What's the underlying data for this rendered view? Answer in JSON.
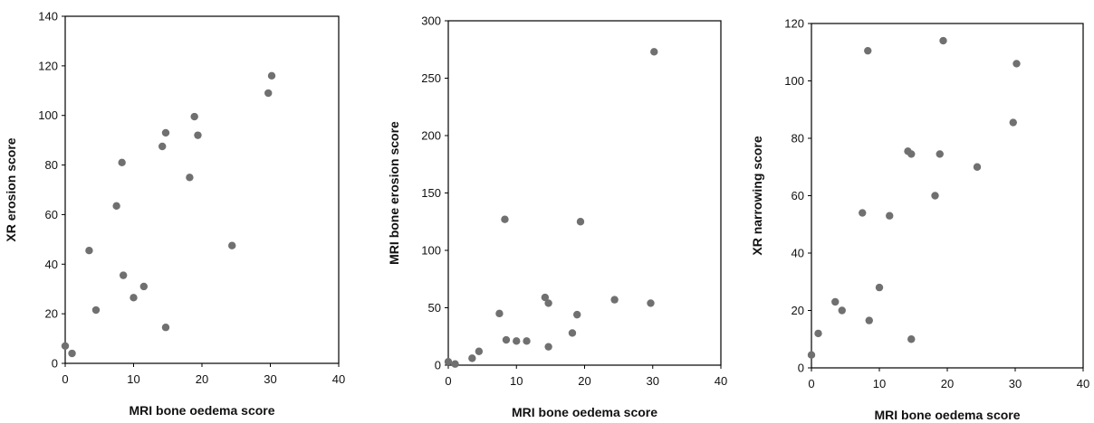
{
  "chart_data": [
    {
      "type": "scatter",
      "xlabel": "MRI bone oedema score",
      "ylabel": "XR erosion score",
      "xlim": [
        0,
        40
      ],
      "ylim": [
        0,
        140
      ],
      "xticks": [
        0,
        10,
        20,
        30,
        40
      ],
      "yticks": [
        0,
        20,
        40,
        60,
        80,
        100,
        120,
        140
      ],
      "grid": false,
      "points": [
        {
          "x": 0,
          "y": 7
        },
        {
          "x": 1,
          "y": 4
        },
        {
          "x": 3.5,
          "y": 45.5
        },
        {
          "x": 4.5,
          "y": 21.5
        },
        {
          "x": 7.5,
          "y": 63.5
        },
        {
          "x": 8.3,
          "y": 81
        },
        {
          "x": 8.5,
          "y": 35.5
        },
        {
          "x": 10,
          "y": 26.5
        },
        {
          "x": 11.5,
          "y": 31
        },
        {
          "x": 14.2,
          "y": 87.5
        },
        {
          "x": 14.7,
          "y": 93
        },
        {
          "x": 14.7,
          "y": 14.5
        },
        {
          "x": 18.2,
          "y": 75
        },
        {
          "x": 18.9,
          "y": 99.5
        },
        {
          "x": 19.4,
          "y": 92
        },
        {
          "x": 24.4,
          "y": 47.5
        },
        {
          "x": 29.7,
          "y": 109
        },
        {
          "x": 30.2,
          "y": 116
        }
      ]
    },
    {
      "type": "scatter",
      "xlabel": "MRI bone oedema score",
      "ylabel": "MRI bone erosion score",
      "xlim": [
        0,
        40
      ],
      "ylim": [
        0,
        300
      ],
      "xticks": [
        0,
        10,
        20,
        30,
        40
      ],
      "yticks": [
        0,
        50,
        100,
        150,
        200,
        250,
        300
      ],
      "grid": false,
      "points": [
        {
          "x": 0,
          "y": 3
        },
        {
          "x": 1,
          "y": 1
        },
        {
          "x": 3.5,
          "y": 6
        },
        {
          "x": 4.5,
          "y": 12
        },
        {
          "x": 7.5,
          "y": 45
        },
        {
          "x": 8.3,
          "y": 127
        },
        {
          "x": 8.5,
          "y": 22
        },
        {
          "x": 10,
          "y": 21
        },
        {
          "x": 11.5,
          "y": 21
        },
        {
          "x": 14.2,
          "y": 59
        },
        {
          "x": 14.7,
          "y": 54
        },
        {
          "x": 14.7,
          "y": 16
        },
        {
          "x": 18.2,
          "y": 28
        },
        {
          "x": 18.9,
          "y": 44
        },
        {
          "x": 19.4,
          "y": 125
        },
        {
          "x": 24.4,
          "y": 57
        },
        {
          "x": 29.7,
          "y": 54
        },
        {
          "x": 30.2,
          "y": 273
        }
      ]
    },
    {
      "type": "scatter",
      "xlabel": "MRI bone oedema score",
      "ylabel": "XR narrowing score",
      "xlim": [
        0,
        40
      ],
      "ylim": [
        0,
        120
      ],
      "xticks": [
        0,
        10,
        20,
        30,
        40
      ],
      "yticks": [
        0,
        20,
        40,
        60,
        80,
        100,
        120
      ],
      "grid": false,
      "points": [
        {
          "x": 0,
          "y": 4.5
        },
        {
          "x": 1,
          "y": 12
        },
        {
          "x": 3.5,
          "y": 23
        },
        {
          "x": 4.5,
          "y": 20
        },
        {
          "x": 7.5,
          "y": 54
        },
        {
          "x": 8.3,
          "y": 110.5
        },
        {
          "x": 8.5,
          "y": 16.5
        },
        {
          "x": 10,
          "y": 28
        },
        {
          "x": 11.5,
          "y": 53
        },
        {
          "x": 14.2,
          "y": 75.5
        },
        {
          "x": 14.7,
          "y": 74.5
        },
        {
          "x": 14.7,
          "y": 10
        },
        {
          "x": 18.2,
          "y": 60
        },
        {
          "x": 18.9,
          "y": 74.5
        },
        {
          "x": 19.4,
          "y": 114
        },
        {
          "x": 24.4,
          "y": 70
        },
        {
          "x": 29.7,
          "y": 85.5
        },
        {
          "x": 30.2,
          "y": 106
        }
      ]
    }
  ]
}
